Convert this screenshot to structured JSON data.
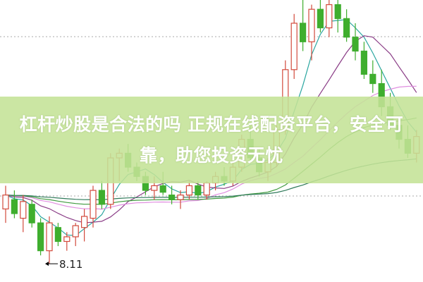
{
  "banner": {
    "text": "杠杆炒股是合法的吗 正规在线配资平台，安全可靠，助您投资无忧"
  },
  "chart_data": {
    "type": "candlestick",
    "title": "",
    "grid": "dotted horizontal",
    "annotation": {
      "label": "8.11",
      "candle_index": 5
    },
    "ylim": [
      8.05,
      10.95
    ],
    "colors": {
      "up": "#d24a3c",
      "down": "#3fae2e",
      "background": "#ffffff",
      "grid": "#aaaaaa",
      "ma": [
        "#2aa6a0",
        "#8a3c86",
        "#e08ee0",
        "#3f9a3f",
        "#2f7a5a"
      ]
    },
    "candles": [
      [
        8.7,
        8.95,
        8.55,
        8.85
      ],
      [
        8.8,
        8.9,
        8.6,
        8.65
      ],
      [
        8.6,
        8.85,
        8.45,
        8.78
      ],
      [
        8.75,
        8.8,
        8.5,
        8.55
      ],
      [
        8.55,
        8.6,
        8.2,
        8.25
      ],
      [
        8.25,
        8.62,
        8.11,
        8.55
      ],
      [
        8.5,
        8.55,
        8.3,
        8.35
      ],
      [
        8.35,
        8.45,
        8.25,
        8.4
      ],
      [
        8.4,
        8.55,
        8.3,
        8.52
      ],
      [
        8.5,
        8.7,
        8.35,
        8.62
      ],
      [
        8.6,
        8.95,
        8.5,
        8.9
      ],
      [
        8.9,
        9.0,
        8.7,
        8.75
      ],
      [
        8.75,
        9.3,
        8.7,
        9.25
      ],
      [
        9.25,
        9.35,
        9.0,
        9.3
      ],
      [
        9.3,
        9.4,
        9.1,
        9.15
      ],
      [
        9.15,
        9.2,
        9.0,
        9.05
      ],
      [
        9.05,
        9.1,
        8.85,
        8.9
      ],
      [
        8.9,
        9.05,
        8.8,
        8.95
      ],
      [
        8.95,
        9.1,
        8.85,
        8.88
      ],
      [
        8.85,
        8.95,
        8.75,
        8.8
      ],
      [
        8.8,
        8.9,
        8.7,
        8.85
      ],
      [
        8.85,
        9.0,
        8.8,
        8.95
      ],
      [
        8.95,
        9.0,
        8.8,
        8.85
      ],
      [
        8.85,
        9.0,
        8.8,
        8.98
      ],
      [
        8.98,
        9.1,
        8.9,
        9.05
      ],
      [
        9.05,
        9.15,
        8.95,
        9.0
      ],
      [
        9.0,
        9.2,
        8.95,
        9.15
      ],
      [
        9.15,
        9.5,
        9.1,
        9.45
      ],
      [
        9.45,
        9.6,
        9.2,
        9.25
      ],
      [
        9.25,
        9.35,
        9.05,
        9.1
      ],
      [
        9.1,
        9.25,
        9.0,
        9.2
      ],
      [
        9.2,
        9.6,
        9.15,
        9.55
      ],
      [
        9.55,
        10.3,
        9.5,
        10.2
      ],
      [
        10.2,
        10.8,
        10.1,
        10.7
      ],
      [
        10.7,
        10.95,
        10.4,
        10.5
      ],
      [
        10.5,
        10.9,
        10.3,
        10.85
      ],
      [
        10.85,
        10.95,
        10.6,
        10.65
      ],
      [
        10.65,
        10.95,
        10.55,
        10.9
      ],
      [
        10.9,
        10.95,
        10.6,
        10.75
      ],
      [
        10.75,
        10.85,
        10.5,
        10.55
      ],
      [
        10.55,
        10.7,
        10.3,
        10.4
      ],
      [
        10.4,
        10.5,
        10.1,
        10.15
      ],
      [
        10.15,
        10.3,
        9.95,
        10.05
      ],
      [
        10.05,
        10.2,
        9.7,
        9.8
      ],
      [
        9.8,
        9.95,
        9.55,
        9.6
      ],
      [
        9.6,
        9.7,
        9.35,
        9.45
      ],
      [
        9.45,
        9.6,
        9.25,
        9.3
      ],
      [
        9.3,
        9.55,
        9.2,
        9.48
      ]
    ],
    "moving_averages": [
      5,
      10,
      20,
      30,
      60
    ]
  }
}
